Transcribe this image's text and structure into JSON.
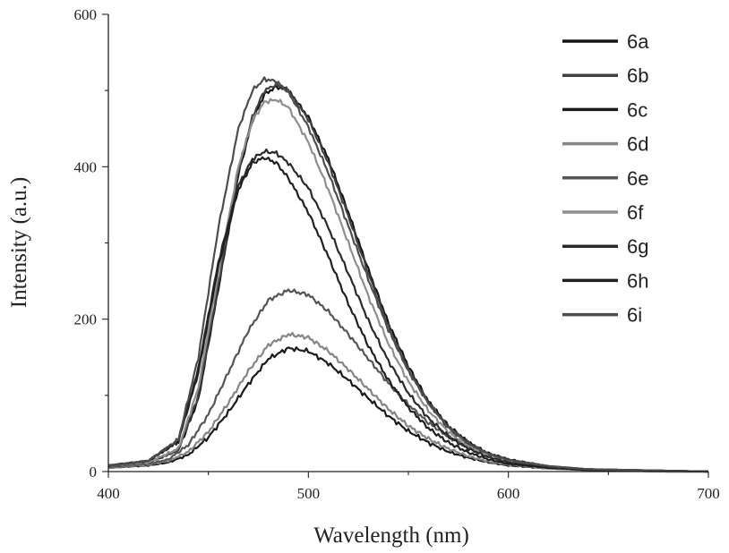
{
  "chart_data": {
    "type": "line",
    "xlabel": "Wavelength (nm)",
    "ylabel": "Intensity (a.u.)",
    "xlim": [
      400,
      700
    ],
    "ylim": [
      0,
      600
    ],
    "x_ticks": [
      400,
      500,
      600,
      700
    ],
    "y_ticks": [
      0,
      200,
      400,
      600
    ],
    "grid": false,
    "legend_position": "top-right",
    "series": [
      {
        "name": "6a",
        "color": "#141414",
        "width": 2.2,
        "x": [
          400,
          420,
          435,
          445,
          455,
          465,
          472,
          478,
          484,
          490,
          500,
          510,
          520,
          530,
          540,
          550,
          560,
          570,
          580,
          590,
          600,
          620,
          640,
          660,
          680,
          700
        ],
        "y": [
          8,
          12,
          28,
          95,
          240,
          390,
          460,
          495,
          505,
          500,
          465,
          410,
          340,
          265,
          195,
          138,
          92,
          60,
          38,
          24,
          16,
          7,
          3,
          2,
          1,
          0
        ]
      },
      {
        "name": "6b",
        "color": "#404040",
        "width": 2.2,
        "x": [
          400,
          420,
          435,
          445,
          455,
          465,
          472,
          478,
          484,
          490,
          500,
          510,
          520,
          530,
          540,
          550,
          560,
          570,
          580,
          590,
          600,
          620,
          640,
          660,
          680,
          700
        ],
        "y": [
          8,
          12,
          28,
          100,
          245,
          395,
          465,
          500,
          508,
          500,
          462,
          405,
          335,
          260,
          190,
          134,
          90,
          58,
          37,
          23,
          15,
          7,
          3,
          2,
          1,
          0
        ]
      },
      {
        "name": "6c",
        "color": "#1a1a1a",
        "width": 2.2,
        "x": [
          400,
          420,
          430,
          440,
          450,
          460,
          470,
          480,
          490,
          500,
          510,
          520,
          530,
          540,
          550,
          560,
          570,
          580,
          590,
          600,
          620,
          640,
          660,
          680,
          700
        ],
        "y": [
          5,
          8,
          12,
          22,
          45,
          78,
          115,
          148,
          162,
          158,
          142,
          120,
          96,
          73,
          53,
          38,
          26,
          18,
          12,
          8,
          4,
          2,
          1,
          0,
          0
        ]
      },
      {
        "name": "6d",
        "color": "#858585",
        "width": 2.2,
        "x": [
          400,
          420,
          430,
          440,
          450,
          460,
          470,
          480,
          490,
          500,
          510,
          520,
          530,
          540,
          550,
          560,
          570,
          580,
          590,
          600,
          620,
          640,
          660,
          680,
          700
        ],
        "y": [
          5,
          9,
          14,
          26,
          52,
          90,
          132,
          166,
          180,
          176,
          158,
          134,
          108,
          82,
          60,
          43,
          30,
          20,
          13,
          9,
          4,
          2,
          1,
          0,
          0
        ]
      },
      {
        "name": "6e",
        "color": "#555555",
        "width": 2.2,
        "x": [
          400,
          420,
          430,
          440,
          450,
          460,
          470,
          480,
          490,
          500,
          510,
          520,
          530,
          540,
          550,
          560,
          570,
          580,
          590,
          600,
          620,
          640,
          660,
          680,
          700
        ],
        "y": [
          6,
          10,
          16,
          35,
          75,
          130,
          185,
          225,
          238,
          232,
          210,
          180,
          148,
          116,
          88,
          64,
          46,
          32,
          22,
          15,
          7,
          3,
          2,
          1,
          0
        ]
      },
      {
        "name": "6f",
        "color": "#8e8e8e",
        "width": 2.2,
        "x": [
          400,
          420,
          435,
          445,
          455,
          465,
          472,
          478,
          484,
          490,
          500,
          510,
          520,
          530,
          540,
          550,
          560,
          570,
          580,
          590,
          600,
          620,
          640,
          660,
          680,
          700
        ],
        "y": [
          8,
          12,
          30,
          110,
          260,
          400,
          460,
          485,
          488,
          478,
          432,
          370,
          300,
          230,
          168,
          118,
          80,
          52,
          33,
          21,
          14,
          6,
          3,
          2,
          1,
          0
        ]
      },
      {
        "name": "6g",
        "color": "#2a2a2a",
        "width": 2.2,
        "x": [
          400,
          420,
          435,
          445,
          455,
          465,
          472,
          478,
          484,
          490,
          500,
          510,
          520,
          530,
          540,
          550,
          560,
          570,
          580,
          590,
          600,
          620,
          640,
          660,
          680,
          700
        ],
        "y": [
          8,
          14,
          40,
          135,
          275,
          375,
          410,
          420,
          418,
          405,
          372,
          320,
          260,
          198,
          145,
          103,
          70,
          46,
          30,
          19,
          12,
          5,
          3,
          2,
          1,
          0
        ]
      },
      {
        "name": "6h",
        "color": "#202020",
        "width": 2.2,
        "x": [
          400,
          420,
          435,
          445,
          455,
          465,
          472,
          478,
          484,
          490,
          500,
          510,
          520,
          530,
          540,
          550,
          560,
          570,
          580,
          590,
          600,
          620,
          640,
          660,
          680,
          700
        ],
        "y": [
          8,
          14,
          40,
          130,
          270,
          370,
          405,
          412,
          405,
          385,
          340,
          282,
          220,
          165,
          120,
          84,
          57,
          38,
          25,
          16,
          10,
          5,
          2,
          1,
          1,
          0
        ]
      },
      {
        "name": "6i",
        "color": "#4d4d4d",
        "width": 2.2,
        "x": [
          400,
          420,
          435,
          445,
          455,
          465,
          472,
          478,
          484,
          490,
          500,
          510,
          520,
          530,
          540,
          550,
          560,
          570,
          580,
          590,
          600,
          620,
          640,
          660,
          680,
          700
        ],
        "y": [
          8,
          14,
          42,
          150,
          320,
          450,
          500,
          515,
          512,
          498,
          452,
          392,
          322,
          252,
          186,
          132,
          90,
          58,
          37,
          23,
          15,
          7,
          3,
          2,
          1,
          0
        ]
      }
    ]
  }
}
